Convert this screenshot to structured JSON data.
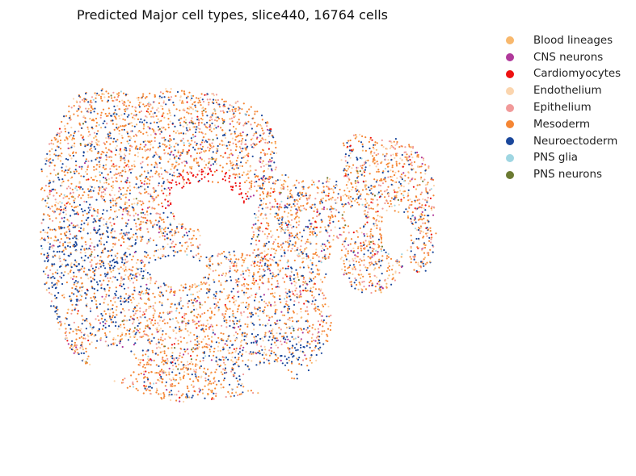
{
  "chart_data": {
    "type": "scatter",
    "title": "Predicted Major cell types, slice440, 16764 cells",
    "xlabel": "",
    "ylabel": "",
    "axes_visible": false,
    "grid": false,
    "legend_placement": "right, outside plot",
    "categories": [
      {
        "name": "Blood lineages",
        "color": "#f8b86d",
        "share": 0.08
      },
      {
        "name": "CNS neurons",
        "color": "#b0399b",
        "share": 0.03
      },
      {
        "name": "Cardiomyocytes",
        "color": "#ee1111",
        "share": 0.025
      },
      {
        "name": "Endothelium",
        "color": "#fbd5ae",
        "share": 0.12
      },
      {
        "name": "Epithelium",
        "color": "#f19a9a",
        "share": 0.13
      },
      {
        "name": "Mesoderm",
        "color": "#f58634",
        "share": 0.42
      },
      {
        "name": "Neuroectoderm",
        "color": "#1a479b",
        "share": 0.17
      },
      {
        "name": "PNS glia",
        "color": "#9fd6e2",
        "share": 0.015
      },
      {
        "name": "PNS neurons",
        "color": "#6b7a32",
        "share": 0.01
      }
    ]
  }
}
